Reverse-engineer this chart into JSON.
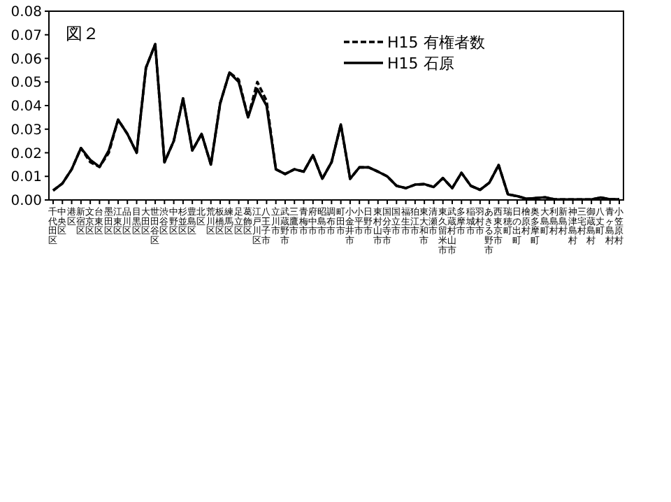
{
  "chart_data": {
    "type": "line",
    "annotations": [
      "図２"
    ],
    "categories": [
      "千代田区",
      "中央区",
      "港区",
      "新宿区",
      "文京区",
      "台東区",
      "墨田区",
      "江東区",
      "品川区",
      "目黒区",
      "大田区",
      "世田谷区",
      "渋谷区",
      "中野区",
      "杉並区",
      "豊島区",
      "北区",
      "荒川区",
      "板橋区",
      "練馬区",
      "足立区",
      "葛飾区",
      "江戸川区",
      "八王子市",
      "立川市",
      "武蔵野市",
      "三鷹市",
      "青梅市",
      "府中市",
      "昭島市",
      "調布市",
      "町田市",
      "小金井市",
      "小平市",
      "日野市",
      "東村山市",
      "国分寺市",
      "国立市",
      "福生市",
      "狛江市",
      "東大和市",
      "清瀬市",
      "東久留米市",
      "武蔵村山市",
      "多摩市",
      "稲城市",
      "羽村市",
      "あきる野市",
      "西東京市",
      "瑞穂町",
      "日の出町",
      "檜原村",
      "奥多摩町",
      "大島町",
      "利島村",
      "新島村",
      "神津島村",
      "三宅村",
      "御蔵島村",
      "八丈町",
      "青ヶ島村",
      "小笠原村"
    ],
    "series": [
      {
        "name": "H15 有権者数",
        "color": "#000000",
        "line_style": "dashed",
        "values": [
          0.004,
          0.007,
          0.013,
          0.022,
          0.016,
          0.014,
          0.02,
          0.034,
          0.028,
          0.02,
          0.056,
          0.066,
          0.016,
          0.025,
          0.043,
          0.021,
          0.028,
          0.015,
          0.041,
          0.054,
          0.051,
          0.035,
          0.05,
          0.042,
          0.013,
          0.011,
          0.013,
          0.012,
          0.019,
          0.009,
          0.016,
          0.032,
          0.009,
          0.0138,
          0.0138,
          0.012,
          0.01,
          0.006,
          0.005,
          0.0065,
          0.0067,
          0.0055,
          0.0093,
          0.005,
          0.0115,
          0.006,
          0.0043,
          0.0073,
          0.0148,
          0.0024,
          0.0016,
          0.0005,
          0.0008,
          0.0011,
          0.0003,
          0.0002,
          0.0002,
          0.0002,
          0.0002,
          0.001,
          0.0003,
          0.0003
        ]
      },
      {
        "name": "H15 石原",
        "color": "#000000",
        "line_style": "solid",
        "values": [
          0.004,
          0.007,
          0.013,
          0.022,
          0.017,
          0.014,
          0.021,
          0.034,
          0.028,
          0.02,
          0.056,
          0.066,
          0.016,
          0.025,
          0.043,
          0.021,
          0.028,
          0.015,
          0.041,
          0.054,
          0.05,
          0.035,
          0.047,
          0.04,
          0.013,
          0.011,
          0.013,
          0.012,
          0.019,
          0.009,
          0.016,
          0.032,
          0.009,
          0.0138,
          0.0138,
          0.012,
          0.01,
          0.006,
          0.005,
          0.0065,
          0.0067,
          0.0055,
          0.0093,
          0.005,
          0.0115,
          0.006,
          0.0043,
          0.0073,
          0.0148,
          0.0024,
          0.0016,
          0.0005,
          0.0008,
          0.0011,
          0.0003,
          0.0002,
          0.0002,
          0.0002,
          0.0002,
          0.001,
          0.0003,
          0.0003
        ]
      }
    ],
    "ylim": [
      0,
      0.08
    ],
    "yticks": [
      {
        "value": 0,
        "label": "0.00"
      },
      {
        "value": 0.01,
        "label": "0.01"
      },
      {
        "value": 0.02,
        "label": "0.02"
      },
      {
        "value": 0.03,
        "label": "0.03"
      },
      {
        "value": 0.04,
        "label": "0.04"
      },
      {
        "value": 0.05,
        "label": "0.05"
      },
      {
        "value": 0.06,
        "label": "0.06"
      },
      {
        "value": 0.07,
        "label": "0.07"
      },
      {
        "value": 0.08,
        "label": "0.08"
      }
    ],
    "legend": "top right",
    "grid": false,
    "marker": "none"
  }
}
